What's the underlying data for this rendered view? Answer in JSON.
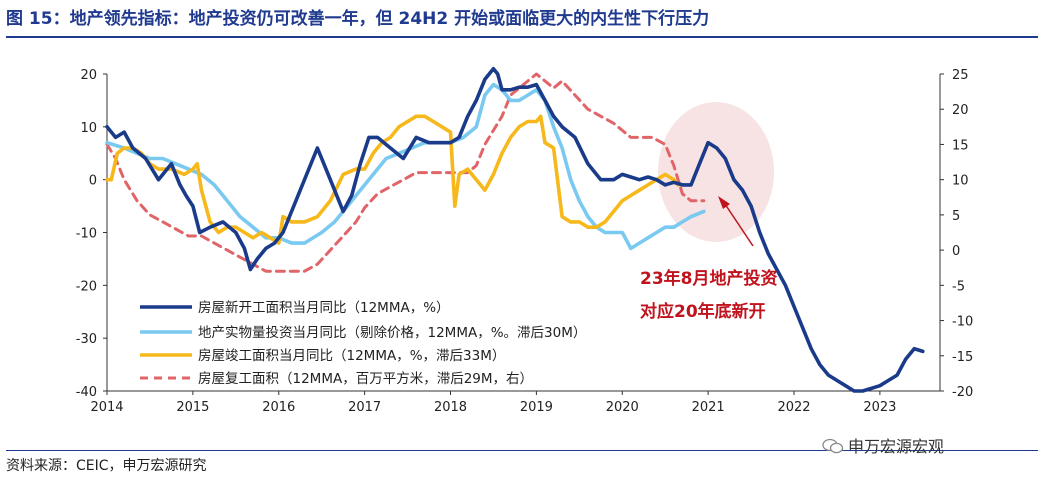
{
  "title": "图 15：地产领先指标：地产投资仍可改善一年，但 24H2 开始或面临更大的内生性下行压力",
  "source": "资料来源：CEIC，申万宏源研究",
  "watermark": "申万宏源宏观",
  "colors": {
    "title": "#1f3a8f",
    "new_starts": "#1a3a8a",
    "investment": "#79c9f0",
    "completions": "#f6b81a",
    "resumption": "#e06468",
    "annotation": "#c0131d",
    "highlight": "#f6dede"
  },
  "chart_data": {
    "type": "line",
    "x_ticks": [
      "2014",
      "2015",
      "2016",
      "2017",
      "2018",
      "2019",
      "2020",
      "2021",
      "2022",
      "2023"
    ],
    "y_left": {
      "ticks": [
        "20",
        "10",
        "0",
        "-10",
        "-20",
        "-30",
        "-40"
      ],
      "lim": [
        -40,
        20
      ]
    },
    "y_right": {
      "ticks": [
        "25",
        "20",
        "15",
        "10",
        "5",
        "0",
        "-5",
        "-10",
        "-15",
        "-20"
      ],
      "lim": [
        -20,
        25
      ]
    },
    "annotation": {
      "lines": [
        "23年8月地产投资",
        "对应20年底新开"
      ],
      "highlight": "ellipse around 2020.5–2021.6"
    },
    "series": [
      {
        "name": "房屋新开工面积当月同比（12MMA，%）",
        "axis": "left",
        "style": "solid-thick",
        "x": [
          2014.0,
          2014.1,
          2014.2,
          2014.3,
          2014.45,
          2014.6,
          2014.75,
          2014.85,
          2014.92,
          2015.0,
          2015.08,
          2015.2,
          2015.35,
          2015.5,
          2015.6,
          2015.67,
          2015.75,
          2015.85,
          2015.95,
          2016.05,
          2016.2,
          2016.35,
          2016.45,
          2016.55,
          2016.65,
          2016.75,
          2016.85,
          2016.95,
          2017.05,
          2017.15,
          2017.3,
          2017.45,
          2017.6,
          2017.75,
          2017.9,
          2018.0,
          2018.1,
          2018.2,
          2018.3,
          2018.4,
          2018.5,
          2018.55,
          2018.6,
          2018.7,
          2018.8,
          2018.9,
          2019.0,
          2019.1,
          2019.2,
          2019.3,
          2019.45,
          2019.6,
          2019.75,
          2019.9,
          2020.0,
          2020.1,
          2020.2,
          2020.3,
          2020.4,
          2020.5,
          2020.6,
          2020.7,
          2020.8,
          2020.9,
          2021.0,
          2021.1,
          2021.2,
          2021.3,
          2021.4,
          2021.5,
          2021.6,
          2021.7,
          2021.8,
          2021.9,
          2022.0,
          2022.1,
          2022.2,
          2022.3,
          2022.4,
          2022.5,
          2022.6,
          2022.7,
          2022.8,
          2022.9,
          2023.0,
          2023.1,
          2023.2,
          2023.3,
          2023.4,
          2023.5
        ],
        "y": [
          10,
          8,
          9,
          6,
          4,
          0,
          3,
          -1,
          -3,
          -5,
          -10,
          -9,
          -8,
          -10,
          -13,
          -17,
          -15,
          -13,
          -12,
          -10,
          -4,
          2,
          6,
          2,
          -2,
          -6,
          -3,
          3,
          8,
          8,
          6,
          4,
          8,
          7,
          7,
          7,
          8,
          12,
          15,
          19,
          21,
          20,
          17,
          17,
          17.5,
          17.5,
          18,
          15,
          12,
          10,
          8,
          3,
          0,
          0,
          1,
          0.5,
          0,
          0.5,
          0,
          -1,
          -0.5,
          -1,
          -1,
          3,
          7,
          6,
          4,
          0,
          -2,
          -5,
          -10,
          -14,
          -17,
          -20,
          -24,
          -28,
          -32,
          -35,
          -37,
          -38,
          -39,
          -40,
          -40,
          -39.5,
          -39,
          -38,
          -37,
          -34,
          -32,
          -32.5
        ]
      },
      {
        "name": "地产实物量投资当月同比（剔除价格，12MMA，%。滞后30M）",
        "axis": "left",
        "style": "solid-light",
        "x": [
          2014.0,
          2014.2,
          2014.35,
          2014.5,
          2014.65,
          2014.8,
          2014.95,
          2015.1,
          2015.25,
          2015.4,
          2015.55,
          2015.7,
          2015.85,
          2016.0,
          2016.15,
          2016.3,
          2016.5,
          2016.65,
          2016.8,
          2016.95,
          2017.1,
          2017.25,
          2017.4,
          2017.55,
          2017.7,
          2017.85,
          2018.0,
          2018.15,
          2018.3,
          2018.4,
          2018.5,
          2018.6,
          2018.7,
          2018.8,
          2018.9,
          2019.0,
          2019.1,
          2019.2,
          2019.3,
          2019.4,
          2019.5,
          2019.6,
          2019.7,
          2019.8,
          2019.9,
          2020.0,
          2020.1,
          2020.2,
          2020.3,
          2020.4,
          2020.5,
          2020.6,
          2020.7,
          2020.8,
          2020.95
        ],
        "y": [
          7,
          6,
          5,
          4,
          4,
          3,
          2,
          1,
          -1,
          -4,
          -7,
          -9,
          -11,
          -11,
          -12,
          -12,
          -10,
          -8,
          -5,
          -2,
          1,
          4,
          5,
          6,
          7,
          7,
          7,
          8,
          10,
          16,
          18,
          17,
          15,
          15,
          16,
          17,
          15,
          10,
          6,
          0,
          -4,
          -7,
          -9,
          -10,
          -10,
          -10,
          -13,
          -12,
          -11,
          -10,
          -9,
          -9,
          -8,
          -7,
          -6
        ]
      },
      {
        "name": "房屋竣工面积当月同比（12MMA，%，滞后33M）",
        "axis": "left",
        "style": "solid-thick",
        "x": [
          2014.0,
          2014.05,
          2014.12,
          2014.2,
          2014.3,
          2014.4,
          2014.5,
          2014.6,
          2014.75,
          2014.9,
          2015.0,
          2015.05,
          2015.1,
          2015.2,
          2015.3,
          2015.4,
          2015.5,
          2015.6,
          2015.7,
          2015.8,
          2015.9,
          2016.0,
          2016.05,
          2016.15,
          2016.3,
          2016.45,
          2016.6,
          2016.75,
          2016.9,
          2017.0,
          2017.1,
          2017.2,
          2017.3,
          2017.4,
          2017.5,
          2017.6,
          2017.7,
          2017.8,
          2017.9,
          2018.0,
          2018.05,
          2018.1,
          2018.2,
          2018.3,
          2018.4,
          2018.5,
          2018.6,
          2018.7,
          2018.8,
          2018.9,
          2019.0,
          2019.05,
          2019.1,
          2019.2,
          2019.3,
          2019.4,
          2019.5,
          2019.6,
          2019.7,
          2019.8,
          2019.9,
          2020.0,
          2020.1,
          2020.2,
          2020.3,
          2020.4,
          2020.5,
          2020.6,
          2020.65
        ],
        "y": [
          0,
          0,
          5,
          6,
          6,
          5,
          3,
          2,
          2,
          1,
          2,
          3,
          -2,
          -8,
          -10,
          -9,
          -9,
          -10,
          -11,
          -10,
          -11,
          -12,
          -7,
          -8,
          -8,
          -7,
          -4,
          1,
          2,
          2,
          5,
          7,
          8,
          10,
          11,
          12,
          12,
          11,
          10,
          9,
          -5,
          1,
          2,
          0,
          -2,
          1,
          5,
          8,
          10,
          11,
          11,
          12,
          7,
          6,
          -7,
          -8,
          -8,
          -9,
          -9,
          -8,
          -6,
          -4,
          -3,
          -2,
          -1,
          0,
          1,
          0,
          -1
        ]
      },
      {
        "name": "房屋复工面积（12MMA，百万平方米，滞后29M，右）",
        "axis": "right",
        "style": "dashed",
        "x": [
          2014.0,
          2014.1,
          2014.2,
          2014.35,
          2014.5,
          2014.65,
          2014.8,
          2014.95,
          2015.1,
          2015.25,
          2015.4,
          2015.55,
          2015.7,
          2015.85,
          2016.0,
          2016.15,
          2016.3,
          2016.45,
          2016.6,
          2016.75,
          2016.9,
          2017.0,
          2017.15,
          2017.3,
          2017.45,
          2017.6,
          2017.75,
          2017.9,
          2018.05,
          2018.2,
          2018.3,
          2018.4,
          2018.5,
          2018.6,
          2018.7,
          2018.8,
          2018.9,
          2019.0,
          2019.1,
          2019.2,
          2019.3,
          2019.45,
          2019.6,
          2019.75,
          2019.9,
          2020.0,
          2020.1,
          2020.2,
          2020.35,
          2020.5,
          2020.6,
          2020.7,
          2020.8,
          2020.95
        ],
        "y": [
          15,
          13,
          10,
          7,
          5,
          4,
          3,
          2,
          2,
          1,
          0,
          -1,
          -2,
          -3,
          -3,
          -3,
          -3,
          -2,
          0,
          2,
          4,
          6,
          8,
          9,
          10,
          11,
          11,
          11,
          11,
          11,
          12,
          15,
          17,
          19,
          22,
          23,
          24,
          25,
          24,
          23,
          24,
          22,
          20,
          19,
          18,
          17,
          16,
          16,
          16,
          15,
          12,
          8,
          7,
          7
        ]
      }
    ]
  }
}
